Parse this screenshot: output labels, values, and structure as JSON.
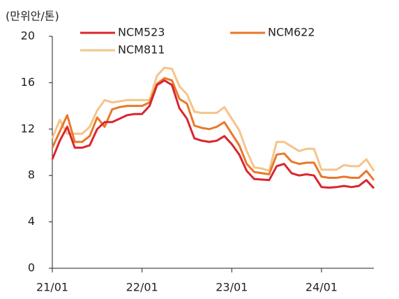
{
  "chart_data": {
    "type": "line",
    "y_label": "(만위안/톤)",
    "categories": [
      "21/01",
      null,
      null,
      null,
      null,
      null,
      null,
      null,
      null,
      null,
      null,
      null,
      "22/01",
      null,
      null,
      null,
      null,
      null,
      null,
      null,
      null,
      null,
      null,
      null,
      "23/01",
      null,
      null,
      null,
      null,
      null,
      null,
      null,
      null,
      null,
      null,
      null,
      "24/01",
      null,
      null,
      null,
      null,
      null,
      null,
      null
    ],
    "series": [
      {
        "name": "NCM523",
        "color": "#d9262e",
        "values": [
          9.4,
          11.0,
          12.2,
          10.4,
          10.4,
          10.6,
          12.0,
          12.6,
          12.6,
          12.9,
          13.2,
          13.3,
          13.3,
          14.0,
          15.8,
          16.2,
          15.8,
          13.8,
          12.9,
          11.2,
          11.0,
          10.9,
          11.0,
          11.4,
          10.7,
          9.8,
          8.4,
          7.7,
          7.65,
          7.6,
          8.8,
          9.0,
          8.2,
          8.0,
          8.1,
          8.0,
          7.0,
          6.95,
          7.0,
          7.1,
          7.0,
          7.1,
          7.6,
          6.9
        ]
      },
      {
        "name": "NCM622",
        "color": "#e8782a",
        "values": [
          10.4,
          11.8,
          13.2,
          10.9,
          10.9,
          11.4,
          13.0,
          12.2,
          13.7,
          13.9,
          14.0,
          14.0,
          14.0,
          14.3,
          15.9,
          16.4,
          16.2,
          14.6,
          14.2,
          12.3,
          12.1,
          12.0,
          12.2,
          12.6,
          11.6,
          10.6,
          9.0,
          8.3,
          8.2,
          8.1,
          9.8,
          9.9,
          9.2,
          9.0,
          9.1,
          9.1,
          7.9,
          7.8,
          7.8,
          7.9,
          7.8,
          7.8,
          8.4,
          7.6
        ]
      },
      {
        "name": "NCM811",
        "color": "#f5c48a",
        "values": [
          11.2,
          12.8,
          11.6,
          11.6,
          11.6,
          12.2,
          13.6,
          14.5,
          14.3,
          14.4,
          14.5,
          14.5,
          14.5,
          14.5,
          16.6,
          17.3,
          17.2,
          15.7,
          15.0,
          13.5,
          13.4,
          13.4,
          13.4,
          13.9,
          12.9,
          11.9,
          10.1,
          8.7,
          8.6,
          8.4,
          10.9,
          10.9,
          10.5,
          10.1,
          10.3,
          10.3,
          8.5,
          8.5,
          8.5,
          8.9,
          8.8,
          8.8,
          9.4,
          8.4
        ]
      }
    ],
    "ylim": [
      0,
      20
    ],
    "yticks": [
      0,
      4,
      8,
      12,
      16,
      20
    ],
    "grid": false
  }
}
